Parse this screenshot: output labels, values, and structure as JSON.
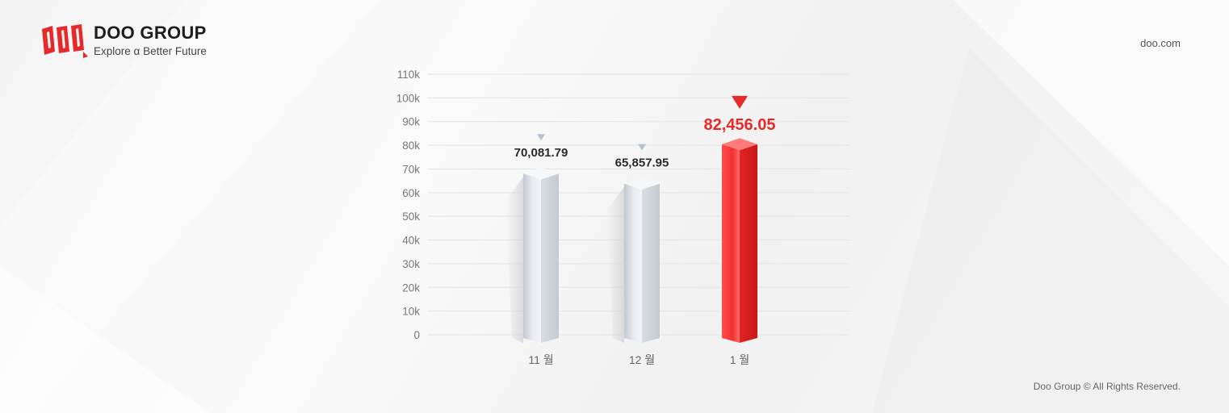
{
  "header": {
    "brand_name": "DOO GROUP",
    "tagline": "Explore α Better Future",
    "logo_icon": "doo-logo-icon",
    "site": "doo.com"
  },
  "footer": {
    "copyright": "Doo Group © All Rights Reserved."
  },
  "colors": {
    "accent": "#e62a2a",
    "bar_default": "#e4e7ec",
    "marker_default": "#b7c2d0",
    "grid": "#e3e3e3"
  },
  "chart_data": {
    "type": "bar",
    "categories": [
      "11 월",
      "12 월",
      "1 월"
    ],
    "values": [
      70081.79,
      65857.95,
      82456.05
    ],
    "value_labels": [
      "70,081.79",
      "65,857.95",
      "82,456.05"
    ],
    "highlight_index": 2,
    "ylim": [
      0,
      110000
    ],
    "yticks": [
      0,
      10000,
      20000,
      30000,
      40000,
      50000,
      60000,
      70000,
      80000,
      90000,
      100000,
      110000
    ],
    "ytick_labels": [
      "0",
      "10k",
      "20k",
      "30k",
      "40k",
      "50k",
      "60k",
      "70k",
      "80k",
      "90k",
      "100k",
      "110k"
    ],
    "grid": true,
    "legend": "none"
  }
}
